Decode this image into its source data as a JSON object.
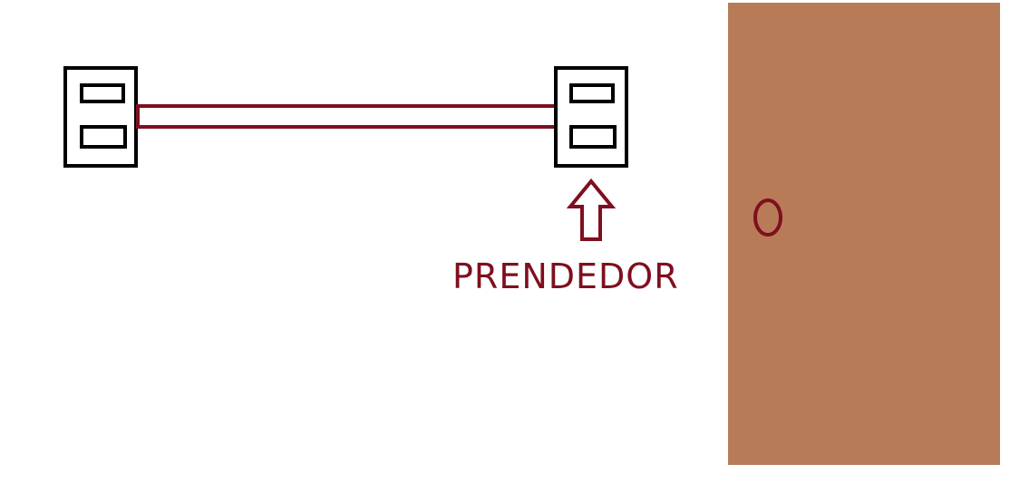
{
  "labels": {
    "prendedor": "PRENDEDOR"
  },
  "colors": {
    "background": "#ffffff",
    "outline": "#000000",
    "accent": "#7f0f1e",
    "door": "#b87b58"
  },
  "icons": {
    "arrow": "up-arrow-icon",
    "knob": "door-knob-icon"
  }
}
